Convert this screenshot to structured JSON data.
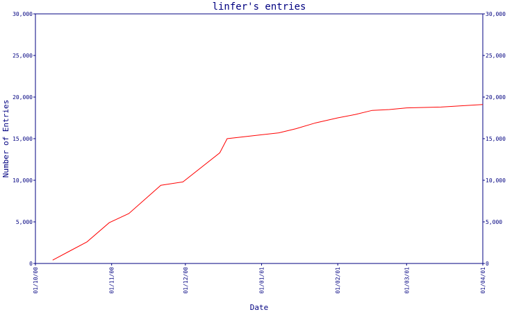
{
  "chart_data": {
    "type": "line",
    "title": "linfer's entries",
    "xlabel": "Date",
    "ylabel": "Number of Entries",
    "ylim": [
      0,
      30000
    ],
    "xlim": [
      "2000-10-01",
      "2001-04-01"
    ],
    "grid": false,
    "y_ticks": [
      0,
      5000,
      10000,
      15000,
      20000,
      25000,
      30000
    ],
    "y_tick_labels": [
      "0",
      "5,000",
      "10,000",
      "15,000",
      "20,000",
      "25,000",
      "30,000"
    ],
    "x_ticks": [
      "2000-10-01",
      "2000-11-01",
      "2000-12-01",
      "2001-01-01",
      "2001-02-01",
      "2001-03-01",
      "2001-04-01"
    ],
    "x_tick_labels": [
      "01/10/00",
      "01/11/00",
      "01/12/00",
      "01/01/01",
      "01/02/01",
      "01/03/01",
      "01/04/01"
    ],
    "series_color": "#ff0000",
    "axis_color": "#000080",
    "x": [
      "2000-10-08",
      "2000-10-15",
      "2000-10-22",
      "2000-10-31",
      "2000-11-08",
      "2000-11-21",
      "2000-11-30",
      "2000-12-15",
      "2000-12-18",
      "2001-01-08",
      "2001-01-15",
      "2001-01-23",
      "2001-02-01",
      "2001-02-08",
      "2001-02-15",
      "2001-02-22",
      "2001-03-01",
      "2001-03-15",
      "2001-04-01"
    ],
    "y": [
      400,
      1500,
      2600,
      4900,
      6000,
      9400,
      9800,
      13300,
      15000,
      15700,
      16200,
      16900,
      17500,
      17900,
      18400,
      18500,
      18700,
      18800,
      19100
    ]
  }
}
